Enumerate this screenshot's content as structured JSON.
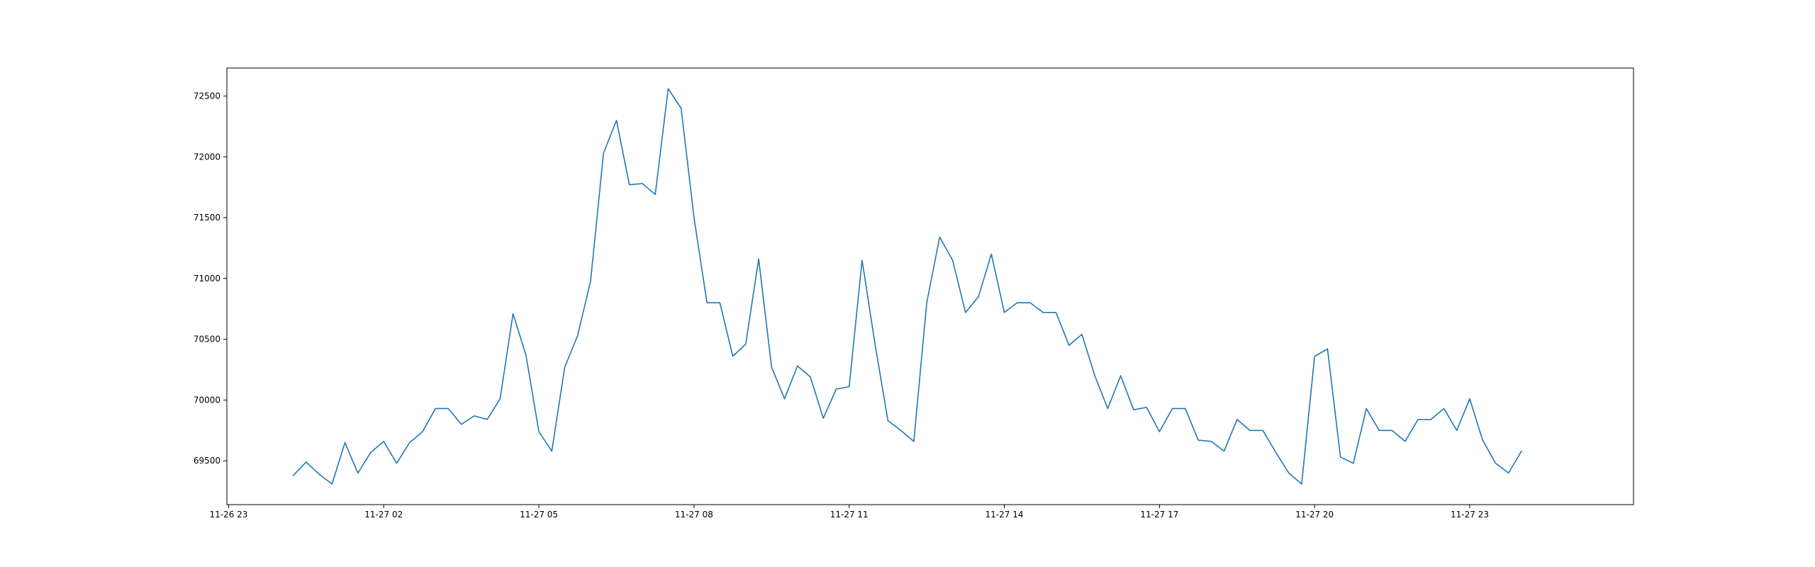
{
  "chart_data": {
    "type": "line",
    "title": "",
    "xlabel": "",
    "ylabel": "",
    "xlim": [
      "2024-11-26 22:58",
      "2024-11-28 02:10"
    ],
    "ylim": [
      69140,
      72730
    ],
    "grid": false,
    "x_ticks": [
      {
        "value": "2024-11-26 23:00",
        "label": "11-26 23"
      },
      {
        "value": "2024-11-27 02:00",
        "label": "11-27 02"
      },
      {
        "value": "2024-11-27 05:00",
        "label": "11-27 05"
      },
      {
        "value": "2024-11-27 08:00",
        "label": "11-27 08"
      },
      {
        "value": "2024-11-27 11:00",
        "label": "11-27 11"
      },
      {
        "value": "2024-11-27 14:00",
        "label": "11-27 14"
      },
      {
        "value": "2024-11-27 17:00",
        "label": "11-27 17"
      },
      {
        "value": "2024-11-27 20:00",
        "label": "11-27 20"
      },
      {
        "value": "2024-11-27 23:00",
        "label": "11-27 23"
      }
    ],
    "y_ticks": [
      {
        "value": 69500,
        "label": "69500"
      },
      {
        "value": 70000,
        "label": "70000"
      },
      {
        "value": 70500,
        "label": "70500"
      },
      {
        "value": 71000,
        "label": "71000"
      },
      {
        "value": 71500,
        "label": "71500"
      },
      {
        "value": 72000,
        "label": "72000"
      },
      {
        "value": 72500,
        "label": "72500"
      }
    ],
    "series": [
      {
        "color": "#1f77b4",
        "x": [
          "2024-11-27 00:15",
          "2024-11-27 00:30",
          "2024-11-27 00:45",
          "2024-11-27 01:00",
          "2024-11-27 01:15",
          "2024-11-27 01:30",
          "2024-11-27 01:45",
          "2024-11-27 02:00",
          "2024-11-27 02:15",
          "2024-11-27 02:30",
          "2024-11-27 02:45",
          "2024-11-27 03:00",
          "2024-11-27 03:15",
          "2024-11-27 03:30",
          "2024-11-27 03:45",
          "2024-11-27 04:00",
          "2024-11-27 04:15",
          "2024-11-27 04:30",
          "2024-11-27 04:45",
          "2024-11-27 05:00",
          "2024-11-27 05:15",
          "2024-11-27 05:30",
          "2024-11-27 05:45",
          "2024-11-27 06:00",
          "2024-11-27 06:15",
          "2024-11-27 06:30",
          "2024-11-27 06:45",
          "2024-11-27 07:00",
          "2024-11-27 07:15",
          "2024-11-27 07:30",
          "2024-11-27 07:45",
          "2024-11-27 08:00",
          "2024-11-27 08:15",
          "2024-11-27 08:30",
          "2024-11-27 08:45",
          "2024-11-27 09:00",
          "2024-11-27 09:15",
          "2024-11-27 09:30",
          "2024-11-27 09:45",
          "2024-11-27 10:00",
          "2024-11-27 10:15",
          "2024-11-27 10:30",
          "2024-11-27 10:45",
          "2024-11-27 11:00",
          "2024-11-27 11:15",
          "2024-11-27 11:30",
          "2024-11-27 11:45",
          "2024-11-27 12:00",
          "2024-11-27 12:15",
          "2024-11-27 12:30",
          "2024-11-27 12:45",
          "2024-11-27 13:00",
          "2024-11-27 13:15",
          "2024-11-27 13:30",
          "2024-11-27 13:45",
          "2024-11-27 14:00",
          "2024-11-27 14:15",
          "2024-11-27 14:30",
          "2024-11-27 14:45",
          "2024-11-27 15:00",
          "2024-11-27 15:15",
          "2024-11-27 15:30",
          "2024-11-27 15:45",
          "2024-11-27 16:00",
          "2024-11-27 16:15",
          "2024-11-27 16:30",
          "2024-11-27 16:45",
          "2024-11-27 17:00",
          "2024-11-27 17:15",
          "2024-11-27 17:30",
          "2024-11-27 17:45",
          "2024-11-27 18:00",
          "2024-11-27 18:15",
          "2024-11-27 18:30",
          "2024-11-27 18:45",
          "2024-11-27 19:00",
          "2024-11-27 19:15",
          "2024-11-27 19:30",
          "2024-11-27 19:45",
          "2024-11-27 20:00",
          "2024-11-27 20:15",
          "2024-11-27 20:30",
          "2024-11-27 20:45",
          "2024-11-27 21:00",
          "2024-11-27 21:15",
          "2024-11-27 21:30",
          "2024-11-27 21:45",
          "2024-11-27 22:00",
          "2024-11-27 22:15",
          "2024-11-27 22:30",
          "2024-11-27 22:45",
          "2024-11-27 23:00",
          "2024-11-27 23:15",
          "2024-11-27 23:30",
          "2024-11-27 23:45",
          "2024-11-28 00:00"
        ],
        "values": [
          69380,
          69490,
          69390,
          69310,
          69650,
          69400,
          69570,
          69660,
          69480,
          69650,
          69740,
          69930,
          69930,
          69800,
          69870,
          69840,
          70010,
          70710,
          70370,
          69740,
          69580,
          70270,
          70530,
          70980,
          72030,
          72300,
          71770,
          71780,
          71690,
          72560,
          72400,
          71500,
          70800,
          70800,
          70360,
          70460,
          71160,
          70270,
          70010,
          70280,
          70190,
          69850,
          70090,
          70110,
          71150,
          70460,
          69830,
          69750,
          69660,
          70800,
          71340,
          71150,
          70720,
          70850,
          71200,
          70720,
          70800,
          70800,
          70720,
          70720,
          70450,
          70540,
          70200,
          69930,
          70200,
          69920,
          69940,
          69740,
          69930,
          69930,
          69670,
          69660,
          69580,
          69840,
          69750,
          69750,
          69570,
          69400,
          69310,
          70360,
          70420,
          69530,
          69480,
          69930,
          69750,
          69750,
          69660,
          69840,
          69840,
          69930,
          69750,
          70010,
          69670,
          69480,
          69400,
          69580
        ]
      }
    ]
  }
}
